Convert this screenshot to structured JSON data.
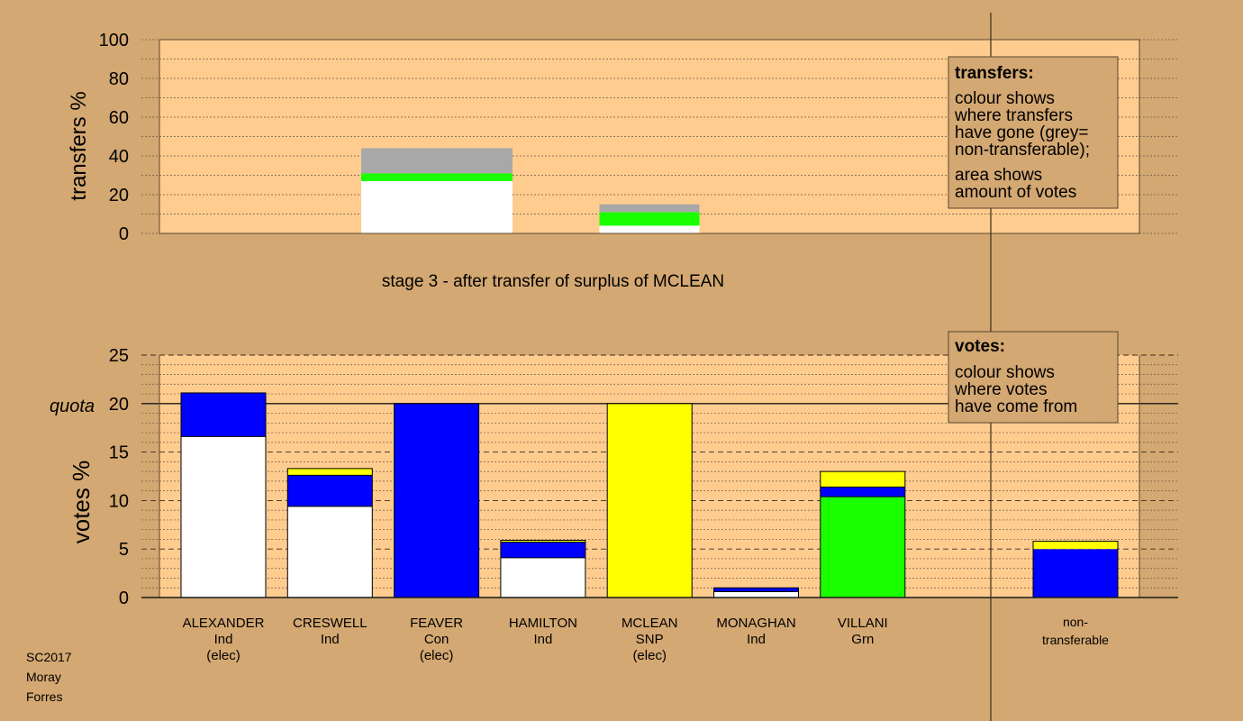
{
  "colors": {
    "background": "#d4a872",
    "plot_area": "#ffcc8f",
    "legend_box": "#d4a872",
    "party_colors": {
      "Ind": "#ffffff",
      "Con": "#0000ff",
      "SNP": "#ffff00",
      "Grn": "#19ff00",
      "non-transferable": "#a8a8a8"
    }
  },
  "chart_data": [
    {
      "type": "bar",
      "name": "transfers chart",
      "ylabel": "transfers %",
      "ylim": [
        0,
        100
      ],
      "yticks": [
        "0",
        "20",
        "40",
        "60",
        "80",
        "100"
      ],
      "caption": "stage 3 - after transfer of surplus of MCLEAN",
      "legend": {
        "title": "transfers:",
        "lines": [
          "colour shows",
          "where transfers",
          "have gone (grey=",
          "non-transferable);"
        ],
        "lines2": [
          "area shows",
          "amount of votes"
        ]
      },
      "bars": [
        {
          "x_index": 1.5,
          "segments": [
            {
              "color": "#ffffff",
              "value": 27
            },
            {
              "color": "#19ff00",
              "value": 4
            },
            {
              "color": "#a8a8a8",
              "value": 13
            }
          ]
        },
        {
          "x_index": 3.6,
          "segments": [
            {
              "color": "#ffffff",
              "value": 4
            },
            {
              "color": "#19ff00",
              "value": 7
            },
            {
              "color": "#a8a8a8",
              "value": 4
            }
          ]
        }
      ]
    },
    {
      "type": "bar",
      "name": "votes chart",
      "ylabel": "votes %",
      "ylim": [
        0,
        25
      ],
      "yticks": [
        "0",
        "5",
        "10",
        "15",
        "20",
        "25"
      ],
      "quota_label": "quota",
      "quota": 20,
      "legend": {
        "title": "votes:",
        "lines": [
          "colour shows",
          "where votes",
          "have come from"
        ]
      },
      "candidates": [
        {
          "name": "ALEXANDER",
          "party": "Ind",
          "status": "(elec)",
          "segments": [
            {
              "color": "#ffffff",
              "value": 16.6
            },
            {
              "color": "#0000ff",
              "value": 4.5
            }
          ]
        },
        {
          "name": "CRESWELL",
          "party": "Ind",
          "status": "",
          "segments": [
            {
              "color": "#ffffff",
              "value": 9.4
            },
            {
              "color": "#0000ff",
              "value": 3.2
            },
            {
              "color": "#ffff00",
              "value": 0.7
            }
          ]
        },
        {
          "name": "FEAVER",
          "party": "Con",
          "status": "(elec)",
          "segments": [
            {
              "color": "#0000ff",
              "value": 20
            }
          ]
        },
        {
          "name": "HAMILTON",
          "party": "Ind",
          "status": "",
          "segments": [
            {
              "color": "#ffffff",
              "value": 4.1
            },
            {
              "color": "#0000ff",
              "value": 1.6
            },
            {
              "color": "#ffff00",
              "value": 0.2
            }
          ]
        },
        {
          "name": "MCLEAN",
          "party": "SNP",
          "status": "(elec)",
          "segments": [
            {
              "color": "#ffff00",
              "value": 20
            }
          ]
        },
        {
          "name": "MONAGHAN",
          "party": "Ind",
          "status": "",
          "segments": [
            {
              "color": "#ffffff",
              "value": 0.6
            },
            {
              "color": "#0000ff",
              "value": 0.4
            }
          ]
        },
        {
          "name": "VILLANI",
          "party": "Grn",
          "status": "",
          "segments": [
            {
              "color": "#19ff00",
              "value": 10.4
            },
            {
              "color": "#0000ff",
              "value": 1
            },
            {
              "color": "#ffff00",
              "value": 1.6
            }
          ]
        }
      ],
      "nontransferable": {
        "label_line1": "non-",
        "label_line2": "transferable",
        "segments": [
          {
            "color": "#0000ff",
            "value": 5
          },
          {
            "color": "#ffff00",
            "value": 0.8
          }
        ]
      }
    }
  ],
  "footer": {
    "line1": "SC2017",
    "line2": "Moray",
    "line3": "Forres"
  }
}
